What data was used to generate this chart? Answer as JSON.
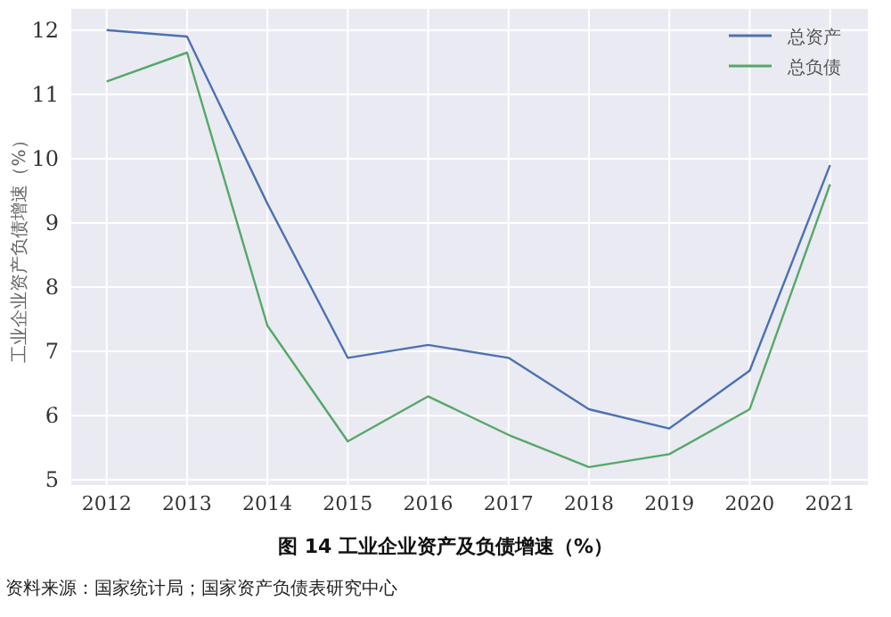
{
  "chart_data": {
    "type": "line",
    "title": "图 14 工业企业资产及负债增速（%）",
    "ylabel": "工业企业资产负债增速（%）",
    "annotations": [
      "资料来源：国家统计局；国家资产负债表研究中心"
    ],
    "x": [
      2012,
      2013,
      2014,
      2015,
      2016,
      2017,
      2018,
      2019,
      2020,
      2021
    ],
    "xlim": [
      2011.56,
      2021.47
    ],
    "xticks": [
      2012,
      2013,
      2014,
      2015,
      2016,
      2017,
      2018,
      2019,
      2020,
      2021
    ],
    "ylim": [
      4.92,
      12.33
    ],
    "yticks": [
      5,
      6,
      7,
      8,
      9,
      10,
      11,
      12
    ],
    "grid": true,
    "legend": "top right",
    "marker": "none",
    "line_style": "solid",
    "series": [
      {
        "name": "总资产",
        "color": "#4c72b0",
        "values": [
          12.0,
          11.9,
          9.3,
          6.9,
          7.1,
          6.9,
          6.1,
          5.8,
          6.7,
          9.9
        ]
      },
      {
        "name": "总负债",
        "color": "#55a868",
        "values": [
          11.2,
          11.65,
          7.4,
          5.6,
          6.3,
          5.7,
          5.2,
          5.4,
          6.1,
          9.6
        ]
      }
    ]
  }
}
